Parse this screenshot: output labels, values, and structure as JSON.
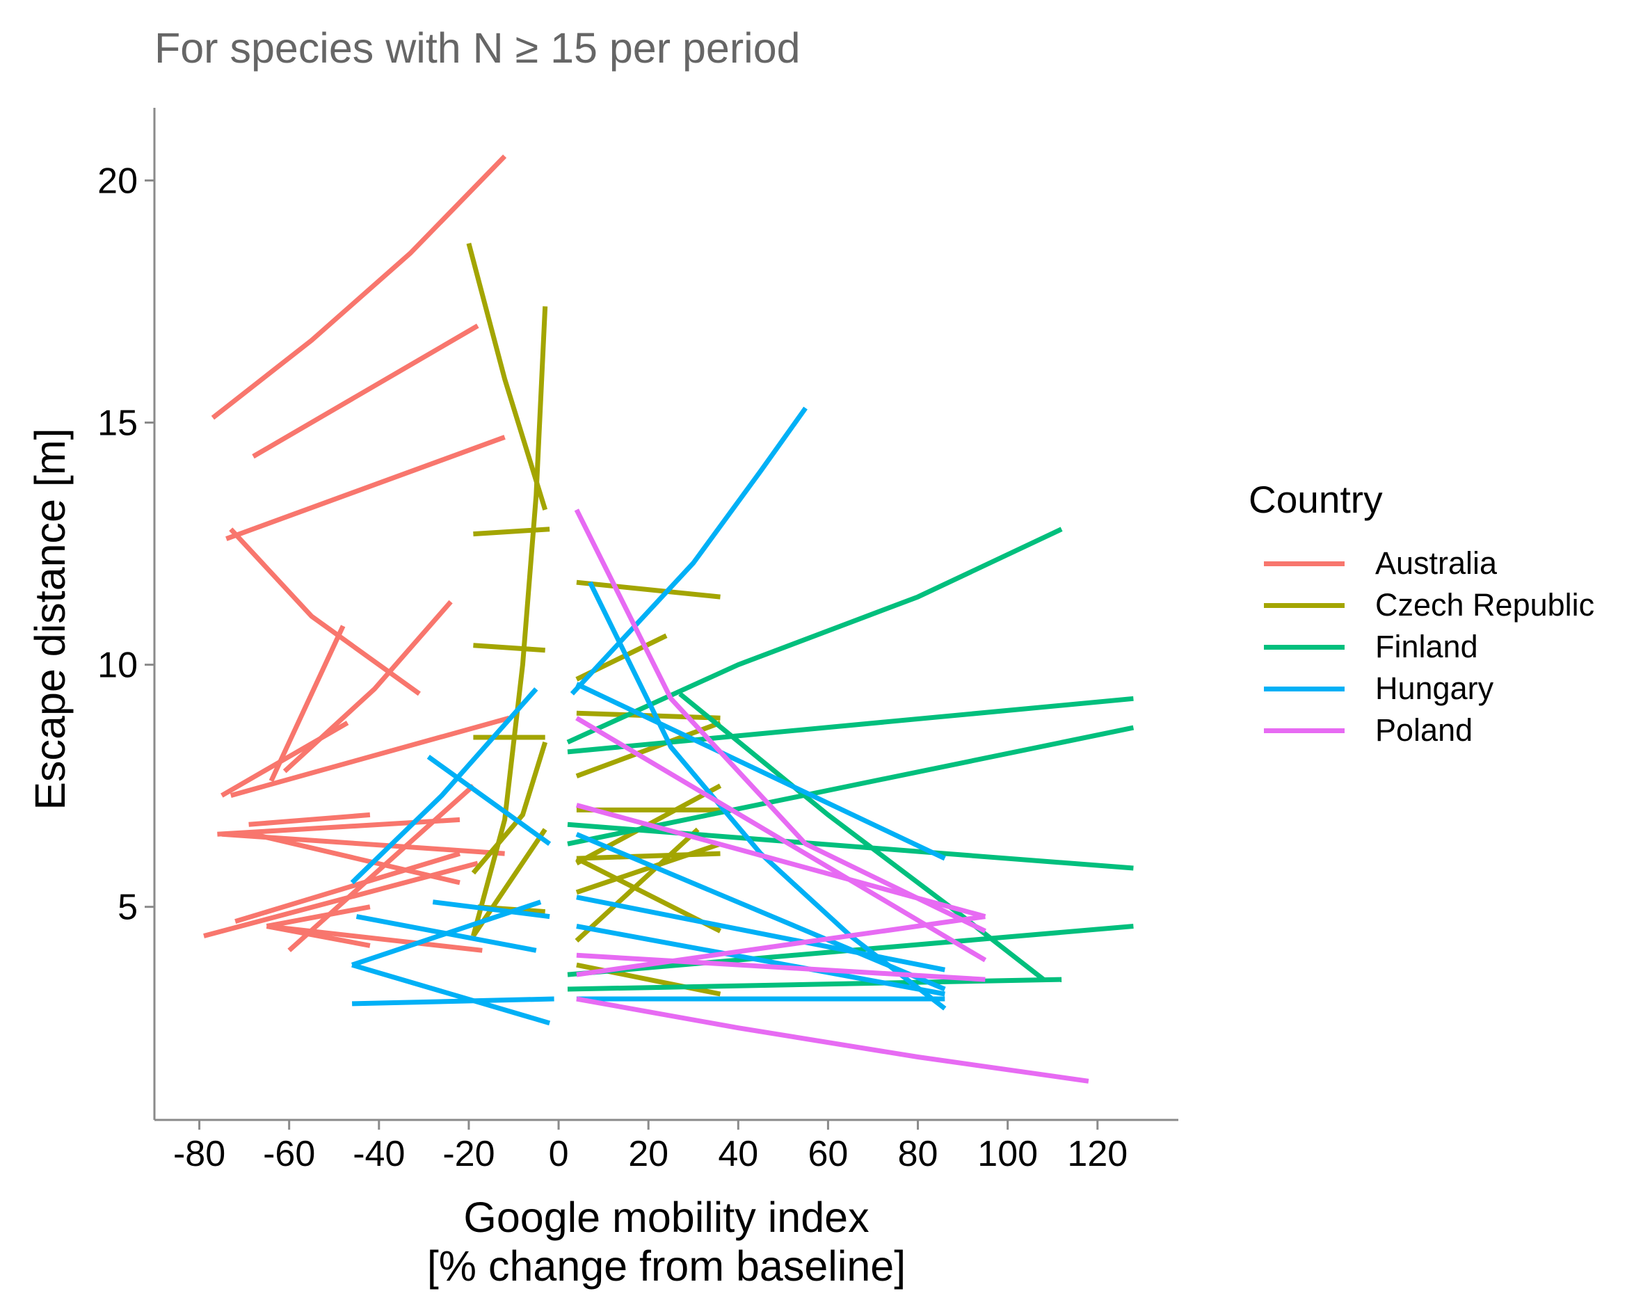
{
  "subtitle": "For species with N ≥ 15 per period",
  "axes": {
    "xlabel_line1": "Google mobility index",
    "xlabel_line2": "[% change from baseline]",
    "ylabel": "Escape distance [m]"
  },
  "legend": {
    "title": "Country",
    "items": [
      {
        "label": "Australia",
        "color": "#F8766D"
      },
      {
        "label": "Czech Republic",
        "color": "#A3A500"
      },
      {
        "label": "Finland",
        "color": "#00BF7D"
      },
      {
        "label": "Hungary",
        "color": "#00B0F6"
      },
      {
        "label": "Poland",
        "color": "#E76BF3"
      }
    ]
  },
  "chart_data": {
    "type": "line",
    "subtitle": "For species with N ≥ 15 per period",
    "xlabel": "Google mobility index [% change from baseline]",
    "ylabel": "Escape distance [m]",
    "xlim": [
      -90,
      138
    ],
    "ylim": [
      0.6,
      21.5
    ],
    "xticks": [
      -80,
      -60,
      -40,
      -20,
      0,
      20,
      40,
      60,
      80,
      100,
      120
    ],
    "yticks": [
      5,
      10,
      15,
      20
    ],
    "grid": false,
    "legend_position": "right",
    "colors": {
      "Australia": "#F8766D",
      "Czech Republic": "#A3A500",
      "Finland": "#00BF7D",
      "Hungary": "#00B0F6",
      "Poland": "#E76BF3"
    },
    "series": [
      {
        "name": "Australia",
        "lines": [
          {
            "x": [
              -77,
              -55,
              -33,
              -12
            ],
            "y": [
              15.1,
              16.7,
              18.5,
              20.5
            ]
          },
          {
            "x": [
              -68,
              -18
            ],
            "y": [
              14.3,
              17.0
            ]
          },
          {
            "x": [
              -74,
              -12
            ],
            "y": [
              12.6,
              14.7
            ]
          },
          {
            "x": [
              -73,
              -55,
              -31
            ],
            "y": [
              12.8,
              11.0,
              9.4
            ]
          },
          {
            "x": [
              -64,
              -56,
              -48
            ],
            "y": [
              7.6,
              9.2,
              10.8
            ]
          },
          {
            "x": [
              -75,
              -47
            ],
            "y": [
              7.3,
              8.8
            ]
          },
          {
            "x": [
              -61,
              -41,
              -24
            ],
            "y": [
              7.8,
              9.5,
              11.3
            ]
          },
          {
            "x": [
              -73,
              -11
            ],
            "y": [
              7.3,
              8.9
            ]
          },
          {
            "x": [
              -69,
              -42
            ],
            "y": [
              6.7,
              6.9
            ]
          },
          {
            "x": [
              -76,
              -22
            ],
            "y": [
              6.5,
              6.8
            ]
          },
          {
            "x": [
              -75,
              -12
            ],
            "y": [
              6.5,
              6.1
            ]
          },
          {
            "x": [
              -68,
              -22
            ],
            "y": [
              6.5,
              5.5
            ]
          },
          {
            "x": [
              -72,
              -22
            ],
            "y": [
              4.7,
              6.1
            ]
          },
          {
            "x": [
              -79,
              -18
            ],
            "y": [
              4.4,
              5.9
            ]
          },
          {
            "x": [
              -60,
              -19
            ],
            "y": [
              4.1,
              7.5
            ]
          },
          {
            "x": [
              -65,
              -42
            ],
            "y": [
              4.6,
              5.0
            ]
          },
          {
            "x": [
              -65,
              -42
            ],
            "y": [
              4.6,
              4.2
            ]
          },
          {
            "x": [
              -65,
              -17
            ],
            "y": [
              4.6,
              4.1
            ]
          }
        ]
      },
      {
        "name": "Czech Republic",
        "lines": [
          {
            "x": [
              -20,
              -12,
              -3
            ],
            "y": [
              18.7,
              15.9,
              13.2
            ]
          },
          {
            "x": [
              -19,
              -12,
              -8,
              -5,
              -3
            ],
            "y": [
              4.4,
              6.8,
              10.0,
              13.5,
              17.4
            ]
          },
          {
            "x": [
              -19,
              -2
            ],
            "y": [
              12.7,
              12.8
            ]
          },
          {
            "x": [
              -19,
              -3
            ],
            "y": [
              10.4,
              10.3
            ]
          },
          {
            "x": [
              -19,
              -3
            ],
            "y": [
              8.5,
              8.5
            ]
          },
          {
            "x": [
              -19,
              -8,
              -3
            ],
            "y": [
              5.7,
              6.9,
              8.4
            ]
          },
          {
            "x": [
              -18,
              -3
            ],
            "y": [
              5.0,
              4.9
            ]
          },
          {
            "x": [
              -19,
              -3
            ],
            "y": [
              4.4,
              6.6
            ]
          },
          {
            "x": [
              4,
              36
            ],
            "y": [
              11.7,
              11.4
            ]
          },
          {
            "x": [
              4,
              24
            ],
            "y": [
              9.7,
              10.6
            ]
          },
          {
            "x": [
              4,
              36
            ],
            "y": [
              9.0,
              8.9
            ]
          },
          {
            "x": [
              4,
              36
            ],
            "y": [
              7.7,
              8.8
            ]
          },
          {
            "x": [
              4,
              36
            ],
            "y": [
              7.0,
              7.0
            ]
          },
          {
            "x": [
              4,
              36
            ],
            "y": [
              6.0,
              6.1
            ]
          },
          {
            "x": [
              4,
              36
            ],
            "y": [
              5.9,
              7.5
            ]
          },
          {
            "x": [
              4,
              36
            ],
            "y": [
              5.3,
              6.3
            ]
          },
          {
            "x": [
              4,
              36
            ],
            "y": [
              6.0,
              4.5
            ]
          },
          {
            "x": [
              4,
              31
            ],
            "y": [
              4.3,
              6.6
            ]
          },
          {
            "x": [
              4,
              36
            ],
            "y": [
              3.8,
              3.2
            ]
          }
        ]
      },
      {
        "name": "Finland",
        "lines": [
          {
            "x": [
              2,
              40,
              80,
              112
            ],
            "y": [
              8.4,
              10.0,
              11.4,
              12.8
            ]
          },
          {
            "x": [
              2,
              128
            ],
            "y": [
              8.2,
              9.3
            ]
          },
          {
            "x": [
              2,
              128
            ],
            "y": [
              6.3,
              8.7
            ]
          },
          {
            "x": [
              2,
              128
            ],
            "y": [
              6.7,
              5.8
            ]
          },
          {
            "x": [
              27,
              60,
              90,
              108
            ],
            "y": [
              9.4,
              6.9,
              4.8,
              3.5
            ]
          },
          {
            "x": [
              2,
              128
            ],
            "y": [
              3.6,
              4.6
            ]
          },
          {
            "x": [
              2,
              112
            ],
            "y": [
              3.3,
              3.5
            ]
          }
        ]
      },
      {
        "name": "Hungary",
        "lines": [
          {
            "x": [
              3,
              15,
              30,
              45,
              55
            ],
            "y": [
              9.4,
              10.6,
              12.1,
              14.0,
              15.3
            ]
          },
          {
            "x": [
              7,
              25,
              45,
              65,
              86
            ],
            "y": [
              11.7,
              8.3,
              6.1,
              4.4,
              2.9
            ]
          },
          {
            "x": [
              4,
              86
            ],
            "y": [
              9.6,
              6.0
            ]
          },
          {
            "x": [
              4,
              86
            ],
            "y": [
              6.5,
              3.3
            ]
          },
          {
            "x": [
              4,
              86
            ],
            "y": [
              5.2,
              3.7
            ]
          },
          {
            "x": [
              4,
              86
            ],
            "y": [
              4.6,
              3.2
            ]
          },
          {
            "x": [
              4,
              86
            ],
            "y": [
              3.1,
              3.1
            ]
          },
          {
            "x": [
              -46,
              -26,
              -5
            ],
            "y": [
              5.5,
              7.3,
              9.5
            ]
          },
          {
            "x": [
              -29,
              -2
            ],
            "y": [
              8.1,
              6.3
            ]
          },
          {
            "x": [
              -28,
              -2
            ],
            "y": [
              5.1,
              4.8
            ]
          },
          {
            "x": [
              -45,
              -5
            ],
            "y": [
              4.8,
              4.1
            ]
          },
          {
            "x": [
              -46,
              -4
            ],
            "y": [
              3.8,
              5.1
            ]
          },
          {
            "x": [
              -46,
              -2
            ],
            "y": [
              3.8,
              2.6
            ]
          },
          {
            "x": [
              -46,
              -1
            ],
            "y": [
              3.0,
              3.1
            ]
          }
        ]
      },
      {
        "name": "Poland",
        "lines": [
          {
            "x": [
              4,
              25,
              55,
              95
            ],
            "y": [
              13.2,
              9.3,
              6.3,
              4.5
            ]
          },
          {
            "x": [
              4,
              95
            ],
            "y": [
              8.9,
              3.9
            ]
          },
          {
            "x": [
              4,
              95
            ],
            "y": [
              7.1,
              4.8
            ]
          },
          {
            "x": [
              4,
              95
            ],
            "y": [
              4.0,
              3.5
            ]
          },
          {
            "x": [
              4,
              95
            ],
            "y": [
              3.6,
              4.8
            ]
          },
          {
            "x": [
              4,
              40,
              80,
              118
            ],
            "y": [
              3.1,
              2.5,
              1.9,
              1.4
            ]
          }
        ]
      }
    ]
  }
}
